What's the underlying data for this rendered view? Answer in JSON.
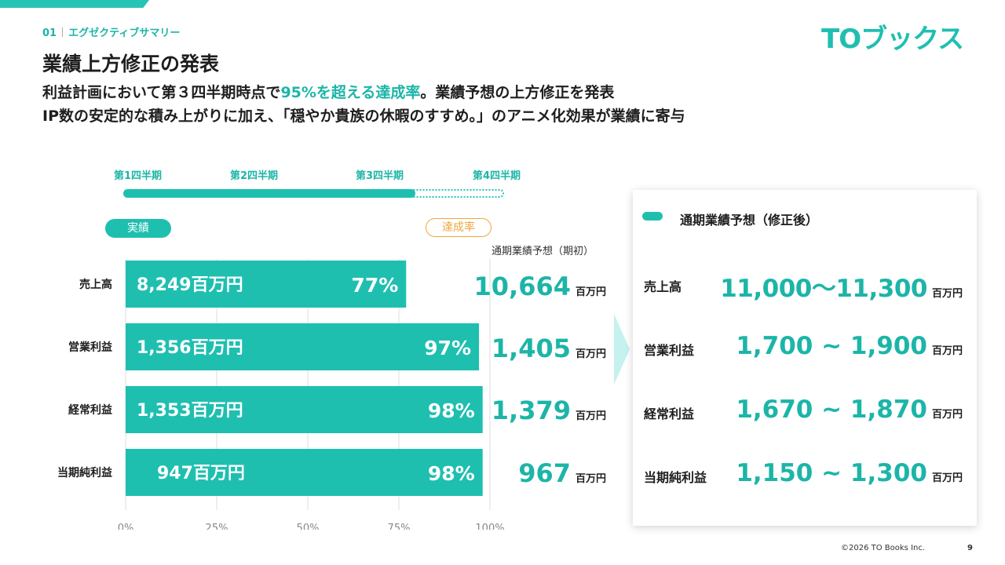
{
  "header": {
    "section_number": "01",
    "section_name": "エグゼクティブサマリー",
    "logo_text": "TOブックス",
    "title": "業績上方修正の発表",
    "subtitle1_pre": "利益計画において第３四半期時点で",
    "subtitle1_highlight": "95%を超える達成率",
    "subtitle1_post": "。業績予想の上方修正を発表",
    "subtitle2": "IP数の安定的な積み上がりに加え、「穏やか貴族の休暇のすすめ。」のアニメ化効果が業績に寄与"
  },
  "timeline": {
    "quarters": [
      "第1四半期",
      "第2四半期",
      "第3四半期",
      "第4四半期"
    ],
    "progress_quarters_completed": 3
  },
  "legend": {
    "actual": "実績",
    "achievement_rate": "達成率",
    "initial_forecast_header": "通期業績予想（期初）"
  },
  "chart_data": {
    "type": "bar",
    "orientation": "horizontal",
    "categories": [
      "売上高",
      "営業利益",
      "経常利益",
      "当期純利益"
    ],
    "series": [
      {
        "name": "達成率",
        "values": [
          77,
          97,
          98,
          98
        ],
        "unit": "%"
      }
    ],
    "actual_labels": [
      "8,249百万円",
      "1,356百万円",
      "1,353百万円",
      "947百万円"
    ],
    "rate_labels": [
      "77%",
      "97%",
      "98%",
      "98%"
    ],
    "initial_forecast": [
      "10,664",
      "1,405",
      "1,379",
      "967"
    ],
    "initial_forecast_unit": "百万円",
    "x_ticks": [
      "0%",
      "25%",
      "50%",
      "75%",
      "100%"
    ],
    "xlim": [
      0,
      100
    ],
    "grid": true
  },
  "revised_forecast": {
    "title": "通期業績予想（修正後）",
    "unit": "百万円",
    "items": [
      {
        "label": "売上高",
        "value": "11,000〜11,300"
      },
      {
        "label": "営業利益",
        "value": "1,700 ~ 1,900"
      },
      {
        "label": "経常利益",
        "value": "1,670 ~ 1,870"
      },
      {
        "label": "当期純利益",
        "value": "1,150 ~ 1,300"
      }
    ]
  },
  "colors": {
    "accent": "#1fbfb0",
    "accent_text": "#1cb5a8",
    "rate_outline": "#f0a640",
    "arrow": "#c5f2ee"
  },
  "footer": {
    "copyright": "©2026  TO Books Inc.",
    "page_number": "9"
  }
}
